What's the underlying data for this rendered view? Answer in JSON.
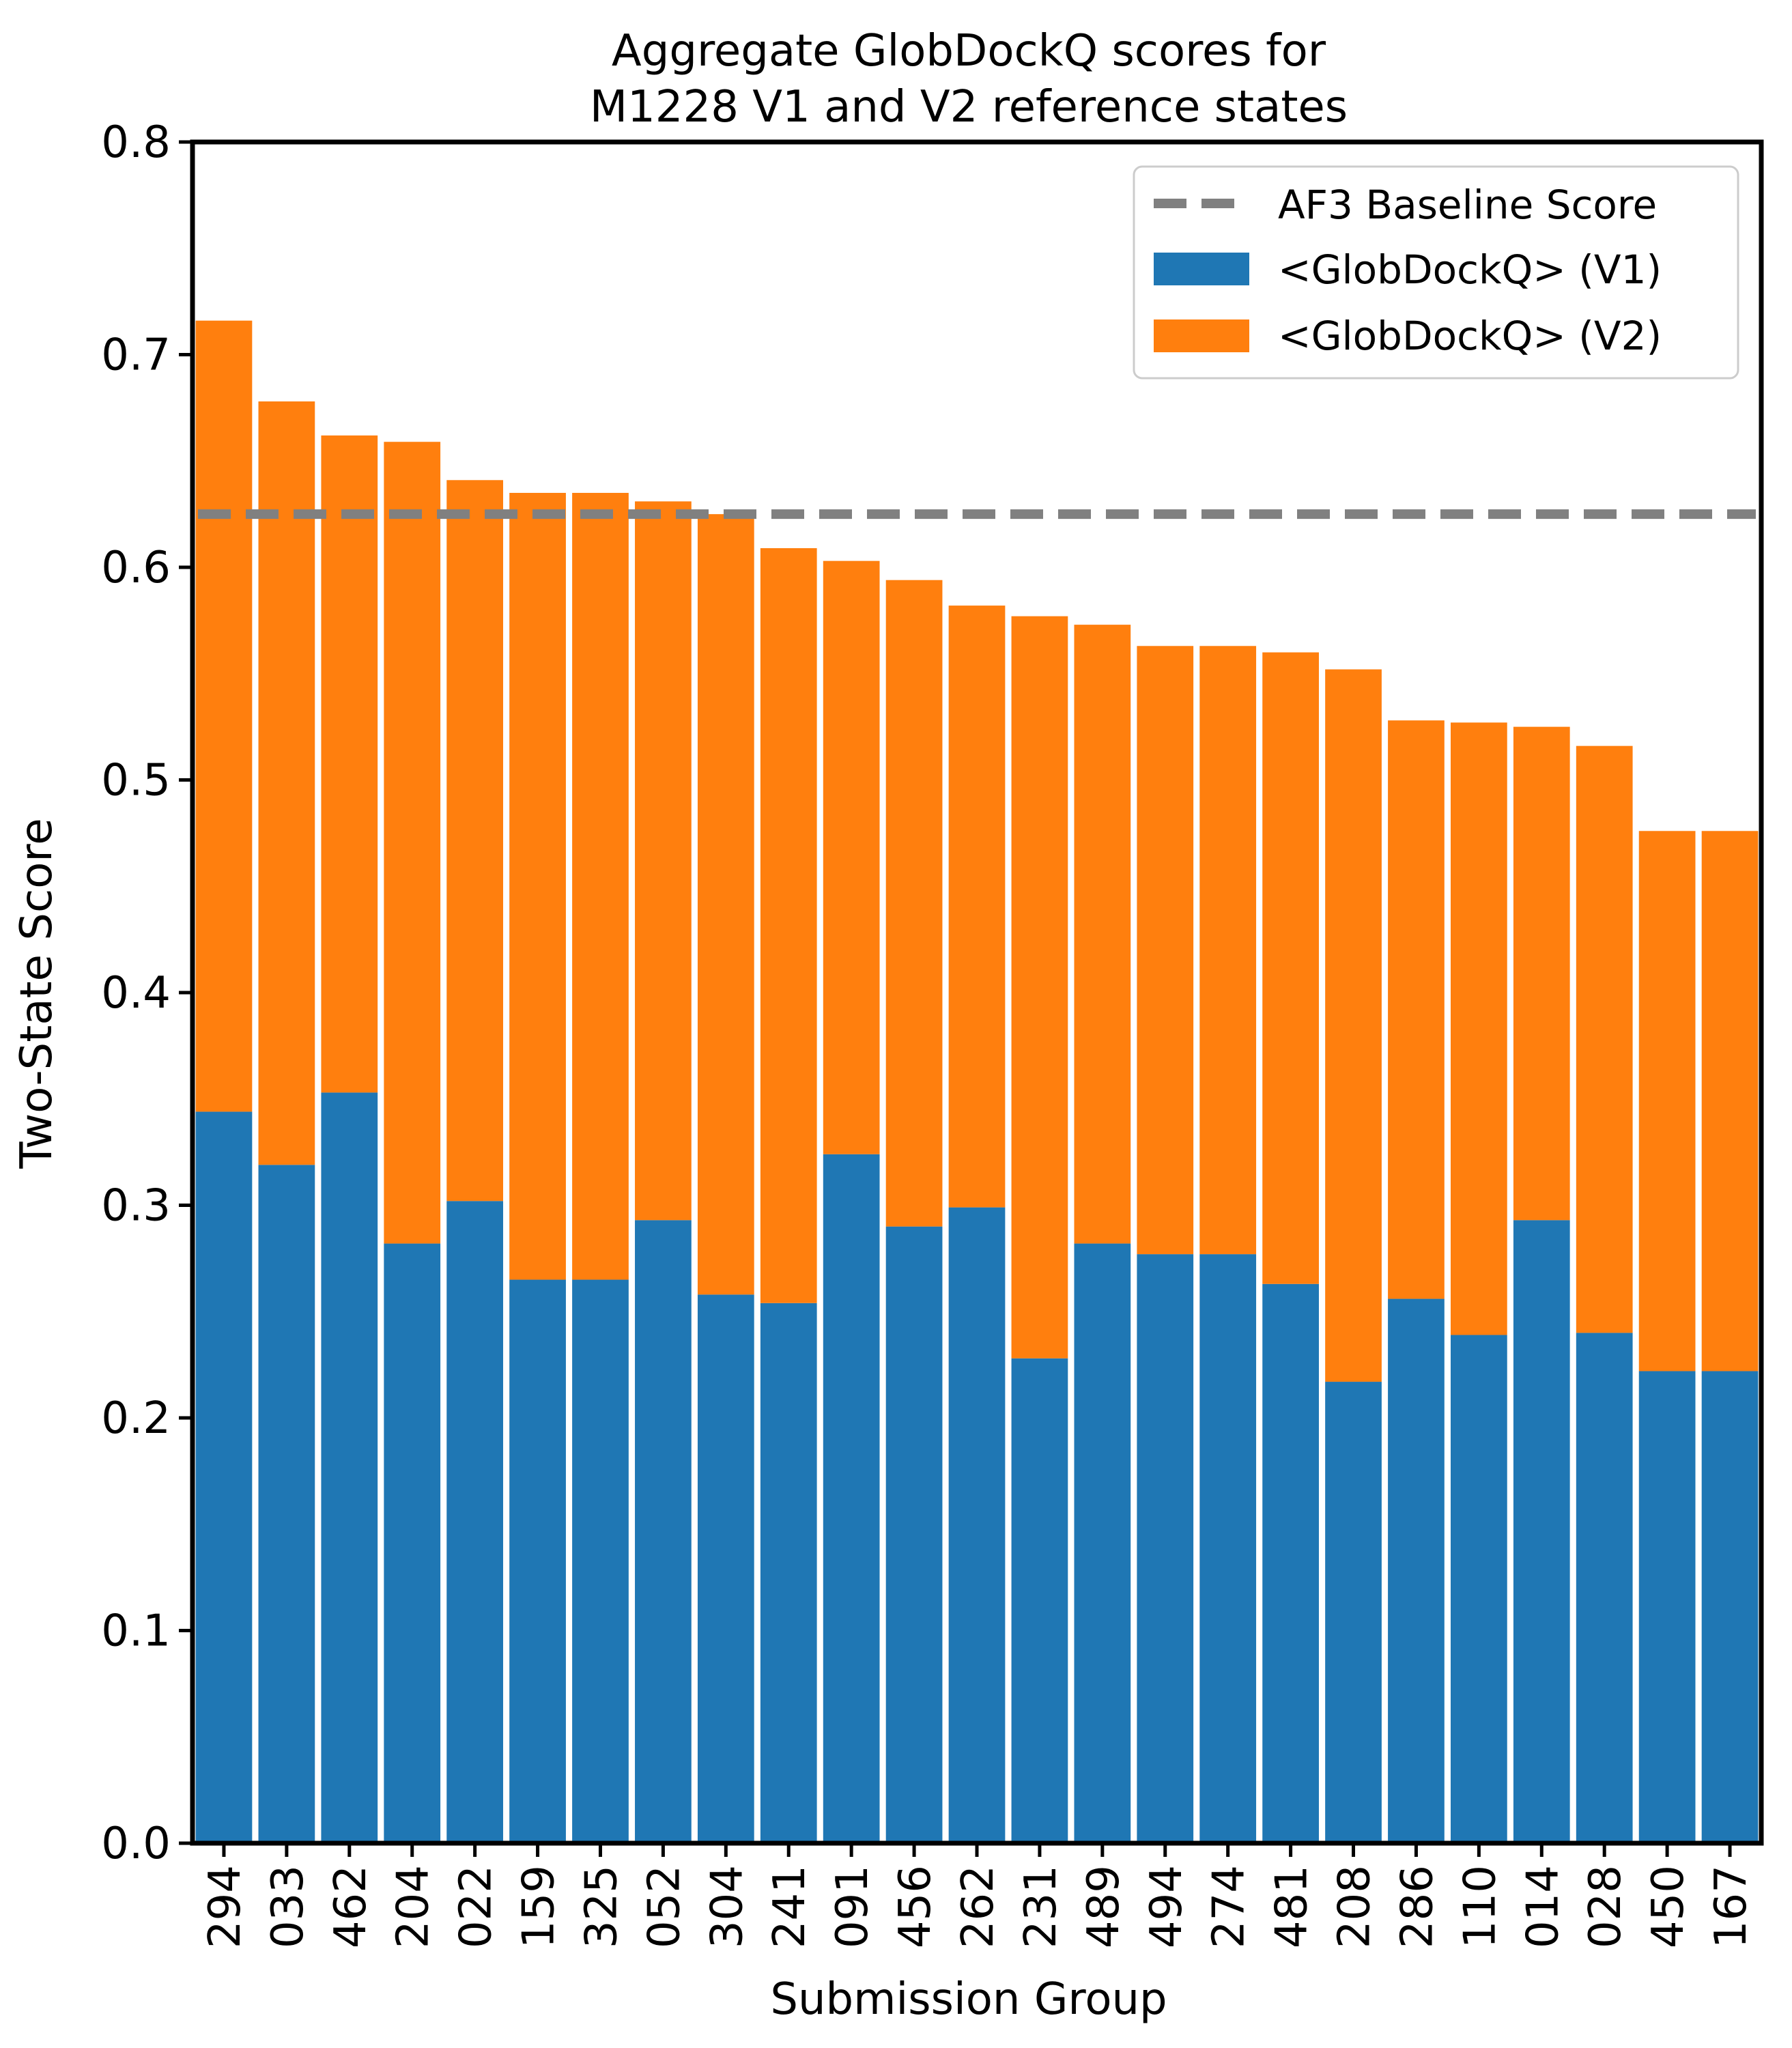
{
  "chart_data": {
    "type": "bar",
    "stacked": true,
    "title": "Aggregate GlobDockQ scores for\nM1228 V1 and V2 reference states",
    "xlabel": "Submission Group",
    "ylabel": "Two-State Score",
    "ylim": [
      0,
      0.8
    ],
    "yticks": [
      "0.0",
      "0.1",
      "0.2",
      "0.3",
      "0.4",
      "0.5",
      "0.6",
      "0.7",
      "0.8"
    ],
    "grid": false,
    "legend_position": "top-right",
    "categories": [
      "294",
      "033",
      "462",
      "204",
      "022",
      "159",
      "325",
      "052",
      "304",
      "241",
      "091",
      "456",
      "262",
      "231",
      "489",
      "494",
      "274",
      "481",
      "208",
      "286",
      "110",
      "014",
      "028",
      "450",
      "167"
    ],
    "series": [
      {
        "name": "<GlobDockQ> (V1)",
        "color": "#1f77b4",
        "values": [
          0.344,
          0.319,
          0.353,
          0.282,
          0.302,
          0.265,
          0.265,
          0.293,
          0.258,
          0.254,
          0.324,
          0.29,
          0.299,
          0.228,
          0.282,
          0.277,
          0.277,
          0.263,
          0.217,
          0.256,
          0.239,
          0.293,
          0.24,
          0.222,
          0.222
        ]
      },
      {
        "name": "<GlobDockQ> (V2)",
        "color": "#ff7f0e",
        "values": [
          0.372,
          0.359,
          0.309,
          0.377,
          0.339,
          0.37,
          0.37,
          0.338,
          0.367,
          0.355,
          0.279,
          0.304,
          0.283,
          0.349,
          0.291,
          0.286,
          0.286,
          0.297,
          0.335,
          0.272,
          0.288,
          0.232,
          0.276,
          0.254,
          0.254
        ]
      }
    ],
    "reference_line": {
      "name": "AF3 Baseline Score",
      "value": 0.625,
      "color": "#808080",
      "style": "dashed"
    }
  }
}
